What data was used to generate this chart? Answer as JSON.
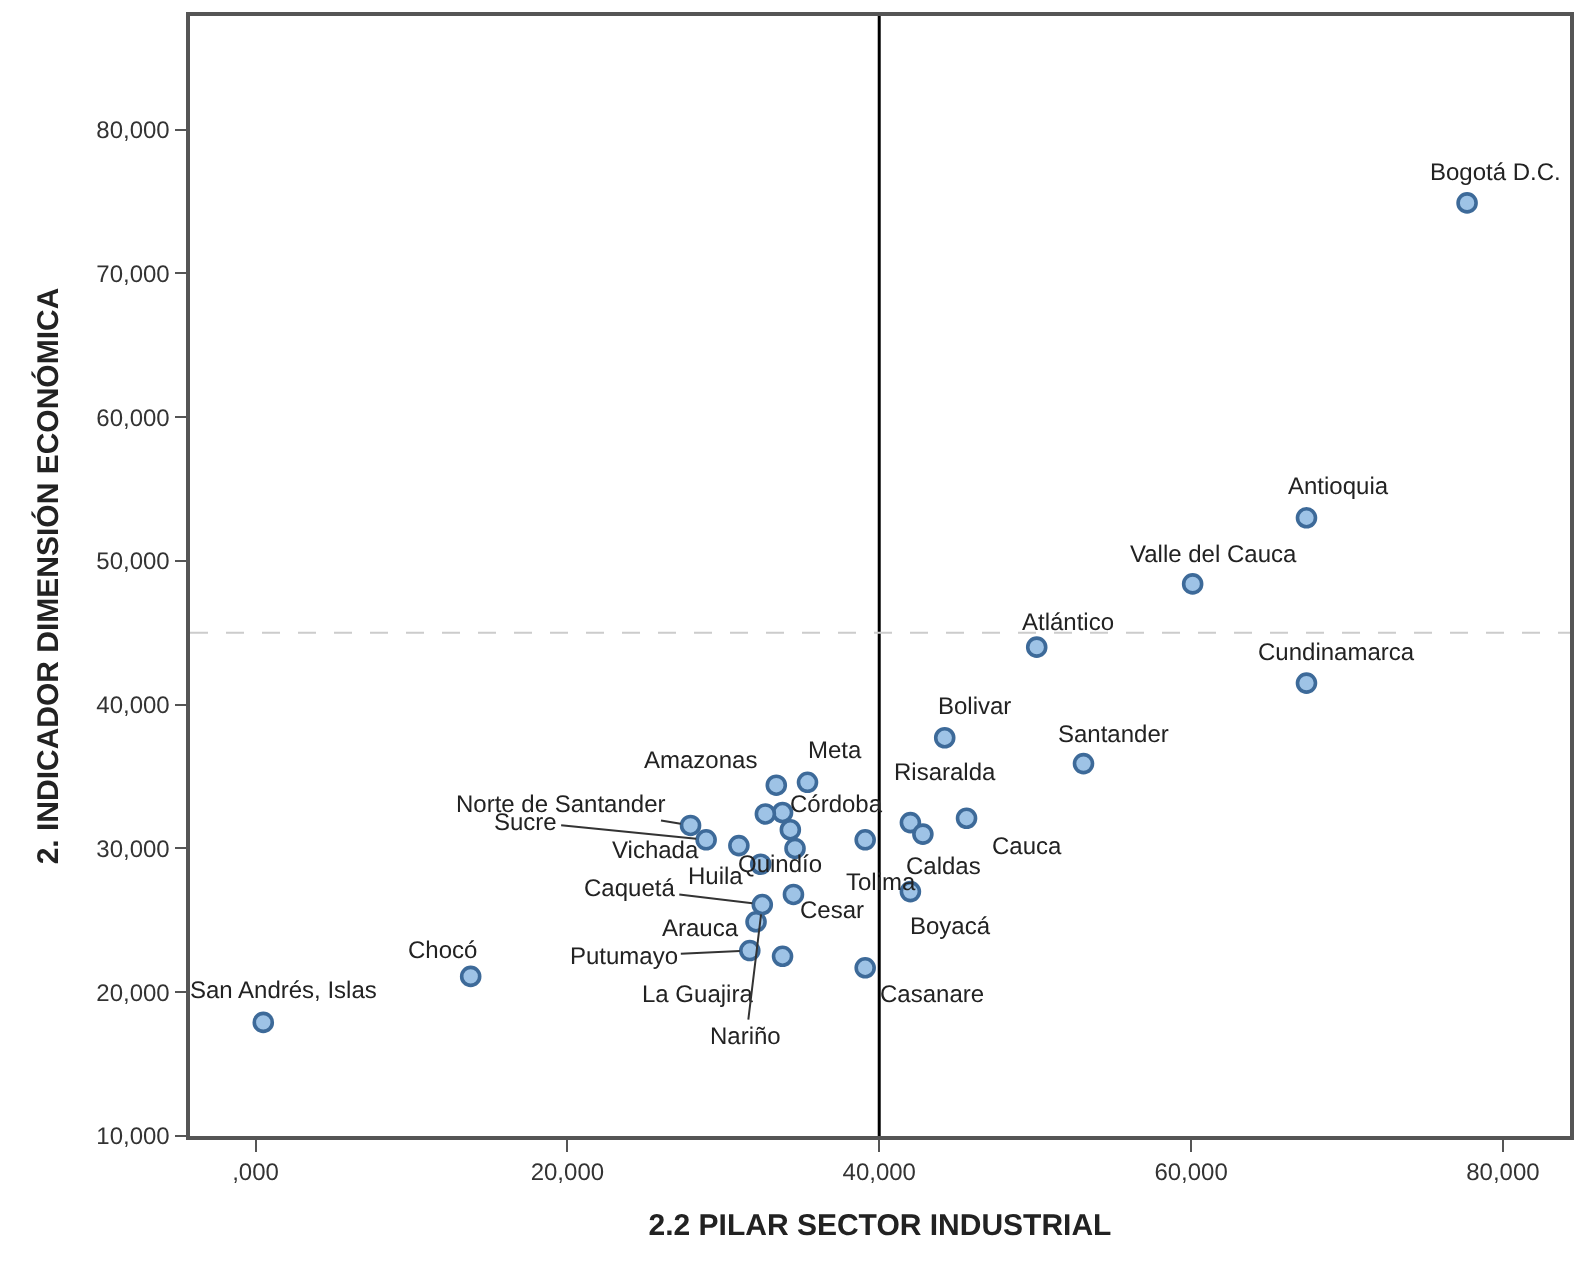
{
  "chart_data": {
    "type": "scatter",
    "xlabel": "2.2 PILAR SECTOR INDUSTRIAL",
    "ylabel": "2. INDICADOR DIMENSIÓN ECONÓMICA",
    "x": [
      77700,
      67400,
      60100,
      50100,
      67400,
      44200,
      53100,
      42000,
      45600,
      42800,
      42000,
      39100,
      34500,
      39100,
      34600,
      32400,
      33800,
      35400,
      33400,
      27900,
      28900,
      31000,
      32500,
      32100,
      31700,
      33800,
      13800,
      500,
      32700,
      34300
    ],
    "series": [
      {
        "color": "#9ec3e6",
        "values": [
          74900,
          53000,
          48400,
          44000,
          41500,
          37700,
          35900,
          31800,
          32100,
          31000,
          27000,
          21700,
          26800,
          30600,
          30000,
          28900,
          32500,
          34600,
          34400,
          31600,
          30600,
          30200,
          26100,
          24900,
          22900,
          22500,
          21100,
          17900,
          32400,
          31300
        ]
      }
    ],
    "annotations": [
      {
        "text": "Bogotá D.C.",
        "x": 77700,
        "y": 74900
      },
      {
        "text": "Antioquia",
        "x": 67400,
        "y": 53000
      },
      {
        "text": "Valle del Cauca",
        "x": 60100,
        "y": 48400
      },
      {
        "text": "Atlántico",
        "x": 50100,
        "y": 44000
      },
      {
        "text": "Cundinamarca",
        "x": 67400,
        "y": 41500
      },
      {
        "text": "Bolivar",
        "x": 44200,
        "y": 37700
      },
      {
        "text": "Santander",
        "x": 53100,
        "y": 35900
      },
      {
        "text": "Risaralda",
        "x": 42000,
        "y": 31800
      },
      {
        "text": "Cauca",
        "x": 45600,
        "y": 32100
      },
      {
        "text": "Caldas",
        "x": 42800,
        "y": 31000
      },
      {
        "text": "Boyacá",
        "x": 42000,
        "y": 27000
      },
      {
        "text": "Casanare",
        "x": 39100,
        "y": 21700
      },
      {
        "text": "Cesar",
        "x": 34500,
        "y": 26800
      },
      {
        "text": "Tolima",
        "x": 39100,
        "y": 30600
      },
      {
        "text": "Quindío",
        "x": 34600,
        "y": 30000
      },
      {
        "text": "Huila",
        "x": 32400,
        "y": 28900
      },
      {
        "text": "Córdoba",
        "x": 33800,
        "y": 32500
      },
      {
        "text": "Meta",
        "x": 35400,
        "y": 34600
      },
      {
        "text": "Amazonas",
        "x": 33400,
        "y": 34400
      },
      {
        "text": "Norte de Santander",
        "x": 27900,
        "y": 31600
      },
      {
        "text": "Sucre",
        "x": 28900,
        "y": 30600
      },
      {
        "text": "Vichada",
        "x": 31000,
        "y": 30200
      },
      {
        "text": "Caquetá",
        "x": 32500,
        "y": 26100
      },
      {
        "text": "Arauca",
        "x": 32100,
        "y": 24900
      },
      {
        "text": "Putumayo",
        "x": 31700,
        "y": 22900
      },
      {
        "text": "La Guajira",
        "x": 33800,
        "y": 22500
      },
      {
        "text": "Nariño",
        "x": 32500,
        "y": 26100
      },
      {
        "text": "Chocó",
        "x": 13800,
        "y": 21100
      },
      {
        "text": "San Andrés, Islas",
        "x": 500,
        "y": 17900
      }
    ],
    "xlim": [
      -4200,
      84300
    ],
    "ylim": [
      10000,
      87900
    ],
    "xticks": [
      {
        "value": 0,
        "label": ",000"
      },
      {
        "value": 20000,
        "label": "20,000"
      },
      {
        "value": 40000,
        "label": "40,000"
      },
      {
        "value": 60000,
        "label": "60,000"
      },
      {
        "value": 80000,
        "label": "80,000"
      }
    ],
    "yticks": [
      {
        "value": 10000,
        "label": "10,000"
      },
      {
        "value": 20000,
        "label": "20,000"
      },
      {
        "value": 30000,
        "label": "30,000"
      },
      {
        "value": 40000,
        "label": "40,000"
      },
      {
        "value": 50000,
        "label": "50,000"
      },
      {
        "value": 60000,
        "label": "60,000"
      },
      {
        "value": 70000,
        "label": "70,000"
      },
      {
        "value": 80000,
        "label": "80,000"
      }
    ],
    "ref_lines": [
      {
        "axis": "x",
        "value": 40000,
        "color": "#000000",
        "line_style": "solid"
      },
      {
        "axis": "y",
        "value": 45000,
        "color": "#cccccc",
        "line_style": "dashed"
      }
    ],
    "marker": "circle"
  }
}
